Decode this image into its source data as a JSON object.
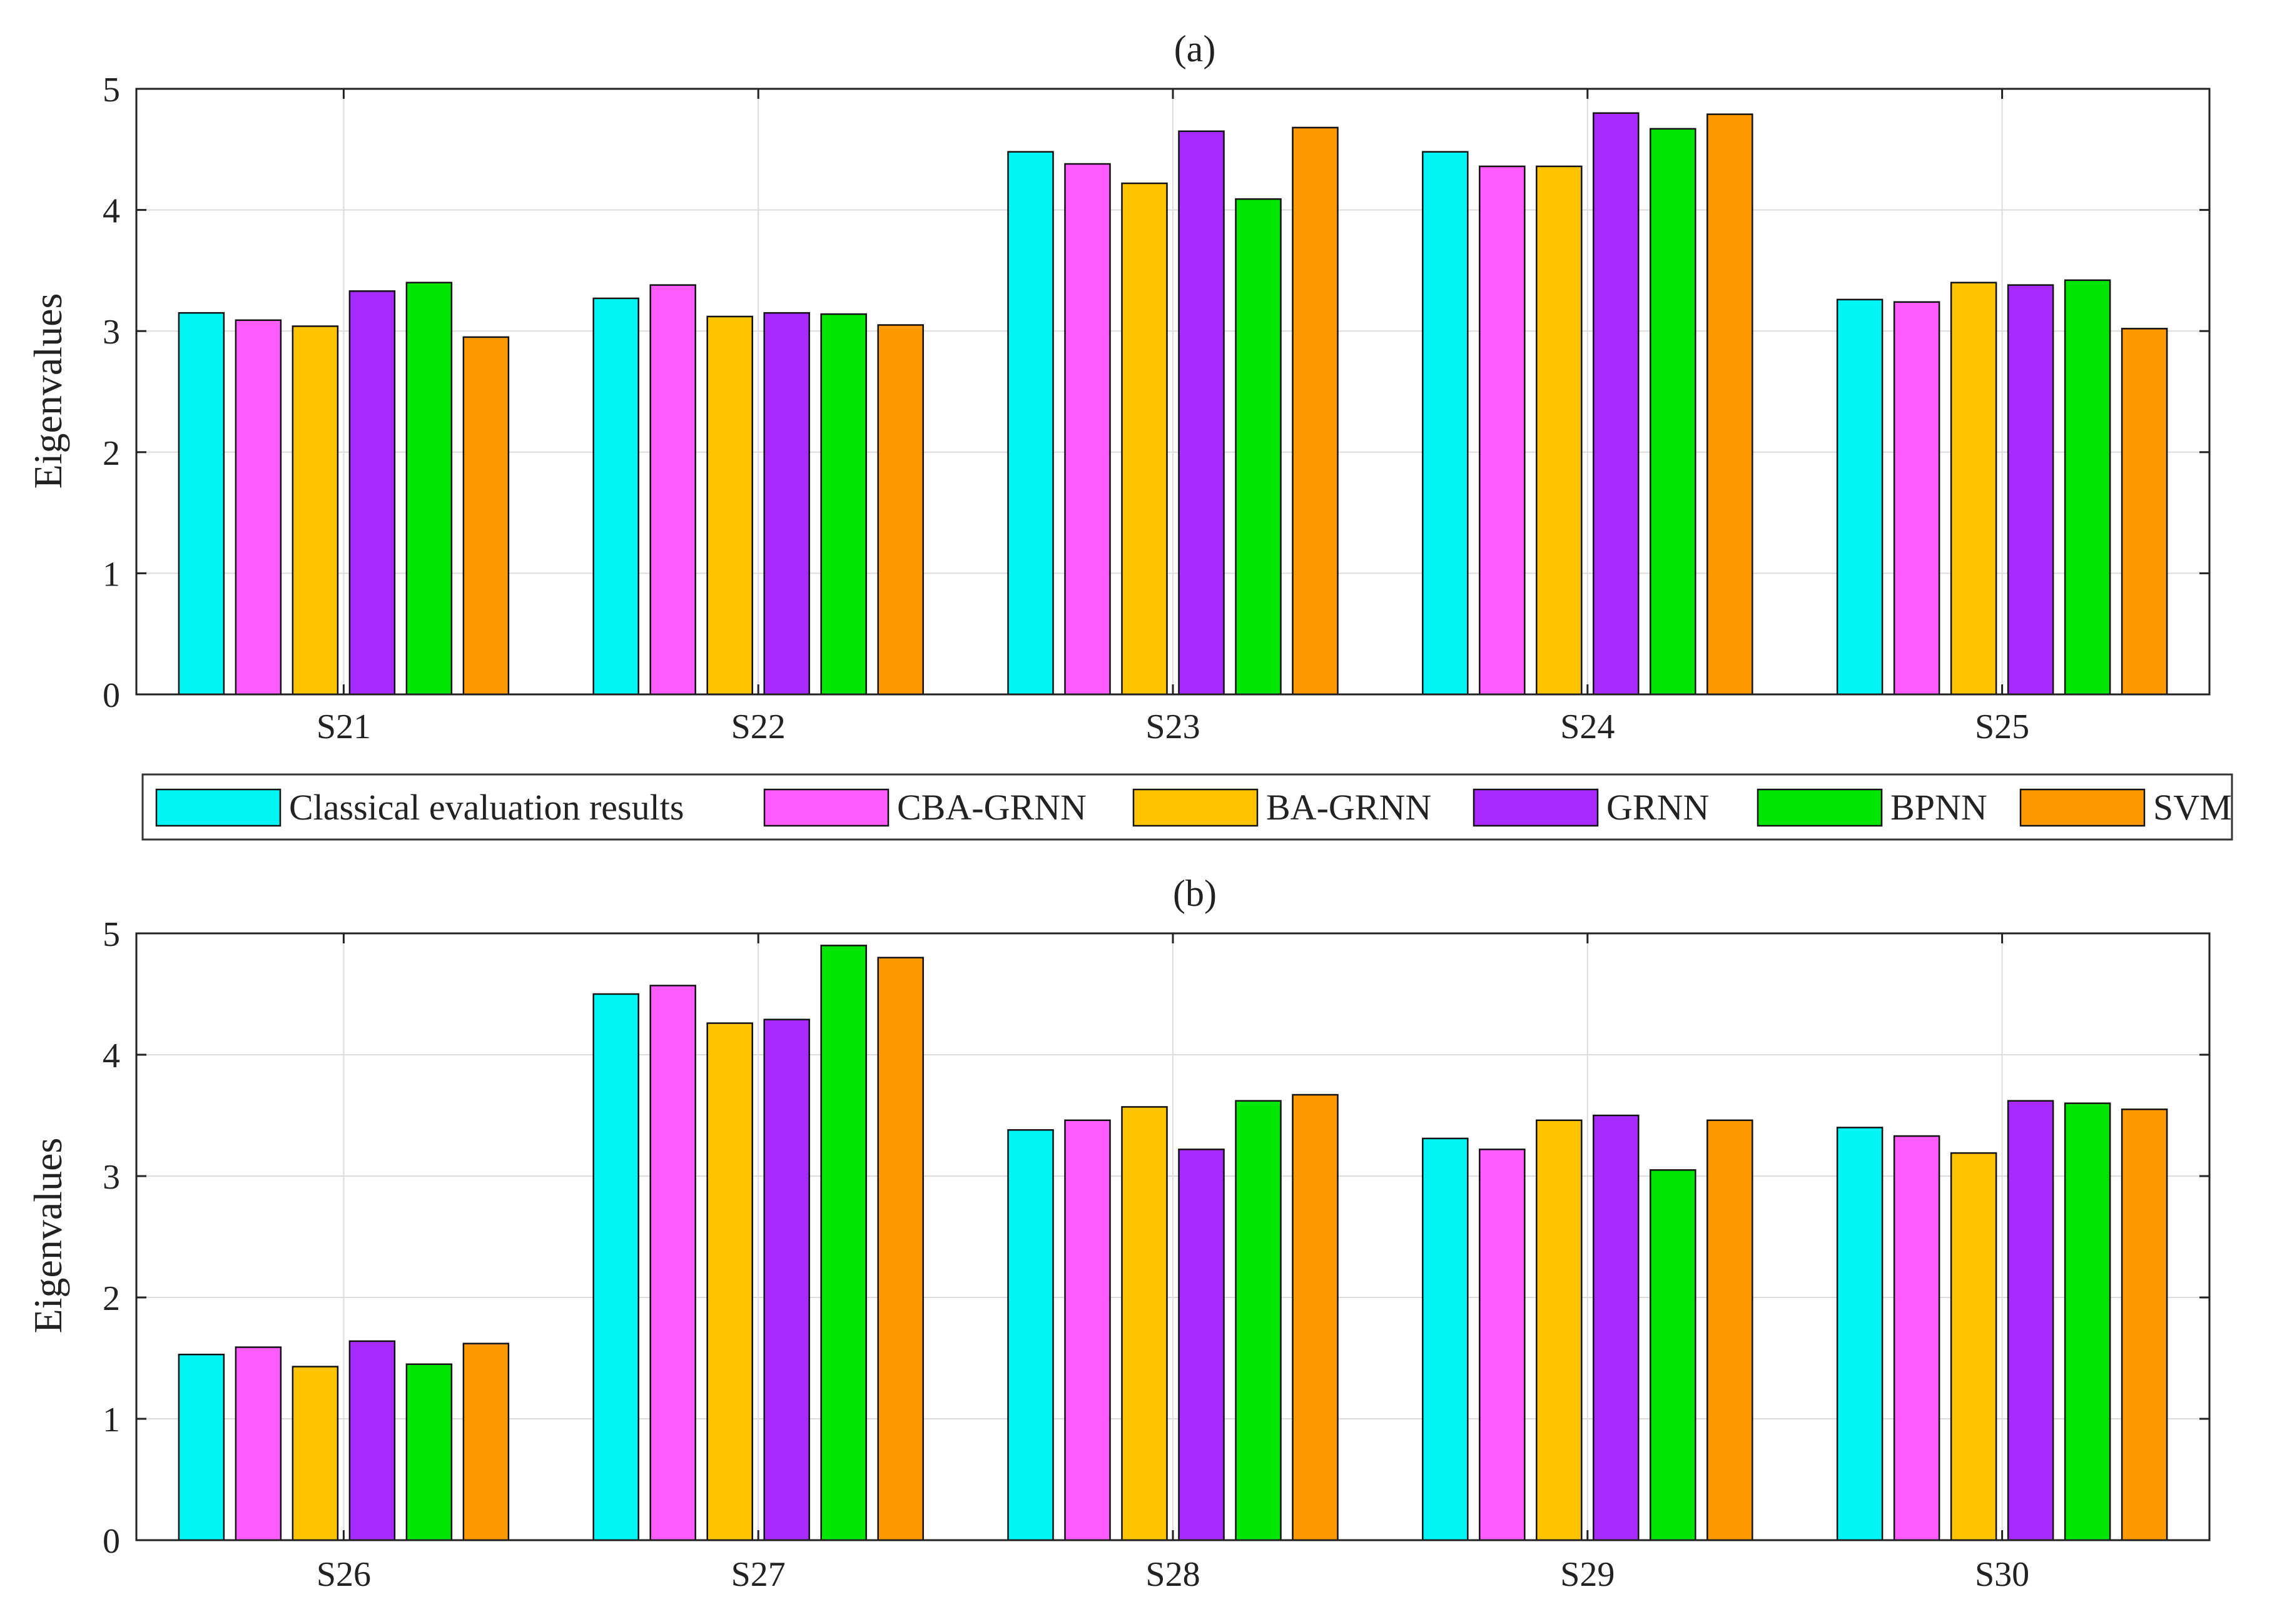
{
  "legend": [
    "Classical evaluation results",
    "CBA-GRNN",
    "BA-GRNN",
    "GRNN",
    "BPNN",
    "SVM"
  ],
  "series_colors": [
    "#00f5f5",
    "#ff5cff",
    "#ffc400",
    "#a72bff",
    "#00e600",
    "#ff9900"
  ],
  "chart_data": [
    {
      "type": "bar",
      "title": "(a)",
      "xlabel": "",
      "ylabel": "Eigenvalues",
      "ylim": [
        0,
        5
      ],
      "yticks": [
        "0",
        "1",
        "2",
        "3",
        "4",
        "5"
      ],
      "grid": true,
      "categories": [
        "S21",
        "S22",
        "S23",
        "S24",
        "S25"
      ],
      "series": [
        {
          "name": "Classical evaluation results",
          "values": [
            3.15,
            3.27,
            4.48,
            4.48,
            3.26
          ]
        },
        {
          "name": "CBA-GRNN",
          "values": [
            3.09,
            3.38,
            4.38,
            4.36,
            3.24
          ]
        },
        {
          "name": "BA-GRNN",
          "values": [
            3.04,
            3.12,
            4.22,
            4.36,
            3.4
          ]
        },
        {
          "name": "GRNN",
          "values": [
            3.33,
            3.15,
            4.65,
            4.8,
            3.38
          ]
        },
        {
          "name": "BPNN",
          "values": [
            3.4,
            3.14,
            4.09,
            4.67,
            3.42
          ]
        },
        {
          "name": "SVM",
          "values": [
            2.95,
            3.05,
            4.68,
            4.79,
            3.02
          ]
        }
      ]
    },
    {
      "type": "bar",
      "title": "(b)",
      "xlabel": "",
      "ylabel": "Eigenvalues",
      "ylim": [
        0,
        5
      ],
      "yticks": [
        "0",
        "1",
        "2",
        "3",
        "4",
        "5"
      ],
      "grid": true,
      "categories": [
        "S26",
        "S27",
        "S28",
        "S29",
        "S30"
      ],
      "series": [
        {
          "name": "Classical evaluation results",
          "values": [
            1.53,
            4.5,
            3.38,
            3.31,
            3.4
          ]
        },
        {
          "name": "CBA-GRNN",
          "values": [
            1.59,
            4.57,
            3.46,
            3.22,
            3.33
          ]
        },
        {
          "name": "BA-GRNN",
          "values": [
            1.43,
            4.26,
            3.57,
            3.46,
            3.19
          ]
        },
        {
          "name": "GRNN",
          "values": [
            1.64,
            4.29,
            3.22,
            3.5,
            3.62
          ]
        },
        {
          "name": "BPNN",
          "values": [
            1.45,
            4.9,
            3.62,
            3.05,
            3.6
          ]
        },
        {
          "name": "SVM",
          "values": [
            1.62,
            4.8,
            3.67,
            3.46,
            3.55
          ]
        }
      ]
    }
  ]
}
